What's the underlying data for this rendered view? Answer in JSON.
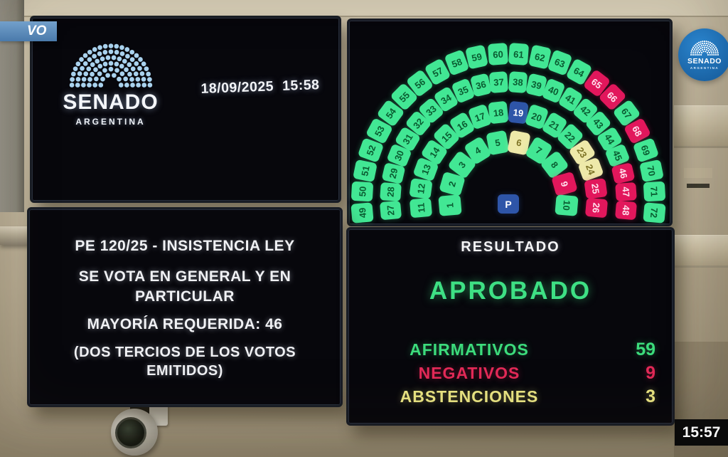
{
  "overlay": {
    "live_badge_text": "VO",
    "watermark_title": "SENADO",
    "watermark_subtitle": "ARGENTINA",
    "clock": "15:57"
  },
  "info_screen": {
    "logo_title": "SENADO",
    "logo_subtitle": "ARGENTINA",
    "date": "18/09/2025",
    "time": "15:58"
  },
  "motion_screen": {
    "line1": "PE 120/25 - INSISTENCIA LEY",
    "line2": "SE VOTA EN GENERAL Y EN PARTICULAR",
    "line3": "MAYORÍA REQUERIDA: 46",
    "line4": "(DOS TERCIOS DE LOS VOTOS EMITIDOS)"
  },
  "result_screen": {
    "header": "RESULTADO",
    "verdict": "APROBADO",
    "rows": [
      {
        "label": "AFIRMATIVOS",
        "value": "59",
        "color": "#3cdc7c"
      },
      {
        "label": "NEGATIVOS",
        "value": "9",
        "color": "#e42a58"
      },
      {
        "label": "ABSTENCIONES",
        "value": "3",
        "color": "#ece784"
      }
    ]
  },
  "chart_data": {
    "type": "hemicycle-vote-board",
    "title": "RESULTADO",
    "verdict": "APROBADO",
    "total_seats": 72,
    "president_seat_label": "P",
    "arcs": [
      {
        "from": 1,
        "to": 10
      },
      {
        "from": 11,
        "to": 26
      },
      {
        "from": 27,
        "to": 48
      },
      {
        "from": 49,
        "to": 72
      }
    ],
    "votes": {
      "default": "afirmativo",
      "negativos": [
        9,
        25,
        26,
        46,
        47,
        48,
        65,
        66,
        68
      ],
      "abstenciones": [
        6,
        23,
        24
      ],
      "ausentes": [
        19
      ]
    },
    "totals": {
      "afirmativos": 59,
      "negativos": 9,
      "abstenciones": 3
    },
    "colors": {
      "afirmativo": "#42e794",
      "negativo": "#e2175c",
      "abstencion": "#eee9a9",
      "ausente": "#2e55a8",
      "president": "#2e55a8",
      "logo_dots": "#a9d2ee"
    }
  }
}
